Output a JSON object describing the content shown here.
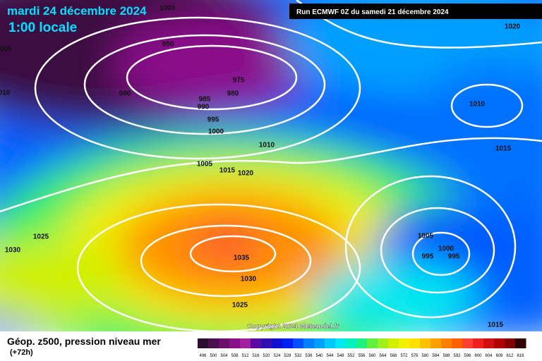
{
  "header": {
    "date": "mardi 24 décembre 2024",
    "time": "1:00 locale",
    "run": "Run ECMWF 0Z du samedi 21 décembre 2024"
  },
  "copyright": "Copyright 2024 Meteociel.fr",
  "isobar_labels": [
    "1000",
    "005",
    "990",
    "010",
    "980",
    "975",
    "985",
    "980",
    "990",
    "995",
    "1000",
    "1010",
    "1005",
    "1015",
    "1020",
    "1025",
    "1030",
    "1035",
    "1030",
    "1025",
    "1020",
    "1010",
    "1015",
    "1005",
    "1000",
    "995",
    "995",
    "1015"
  ],
  "legend": {
    "title": "Géop. z500, pression niveau mer",
    "subtitle": "(+72h)",
    "labels": [
      496,
      500,
      504,
      508,
      512,
      516,
      520,
      524,
      528,
      532,
      536,
      540,
      544,
      548,
      552,
      556,
      560,
      564,
      568,
      572,
      576,
      580,
      584,
      588,
      592,
      596,
      600,
      604,
      608,
      612,
      616
    ],
    "colors": [
      "#2b0f2f",
      "#4a1050",
      "#6b0f6b",
      "#8a108a",
      "#a020a0",
      "#5a0aa0",
      "#3010b0",
      "#1010d0",
      "#0020f0",
      "#0050ff",
      "#0080ff",
      "#00a0ff",
      "#00c8ff",
      "#00e8f0",
      "#00f0c0",
      "#20f080",
      "#60f040",
      "#a0f020",
      "#d0f000",
      "#f0f000",
      "#ffe000",
      "#ffc000",
      "#ffa000",
      "#ff8000",
      "#ff6000",
      "#ff4030",
      "#f02020",
      "#d01010",
      "#b00000",
      "#800000",
      "#300000"
    ]
  }
}
